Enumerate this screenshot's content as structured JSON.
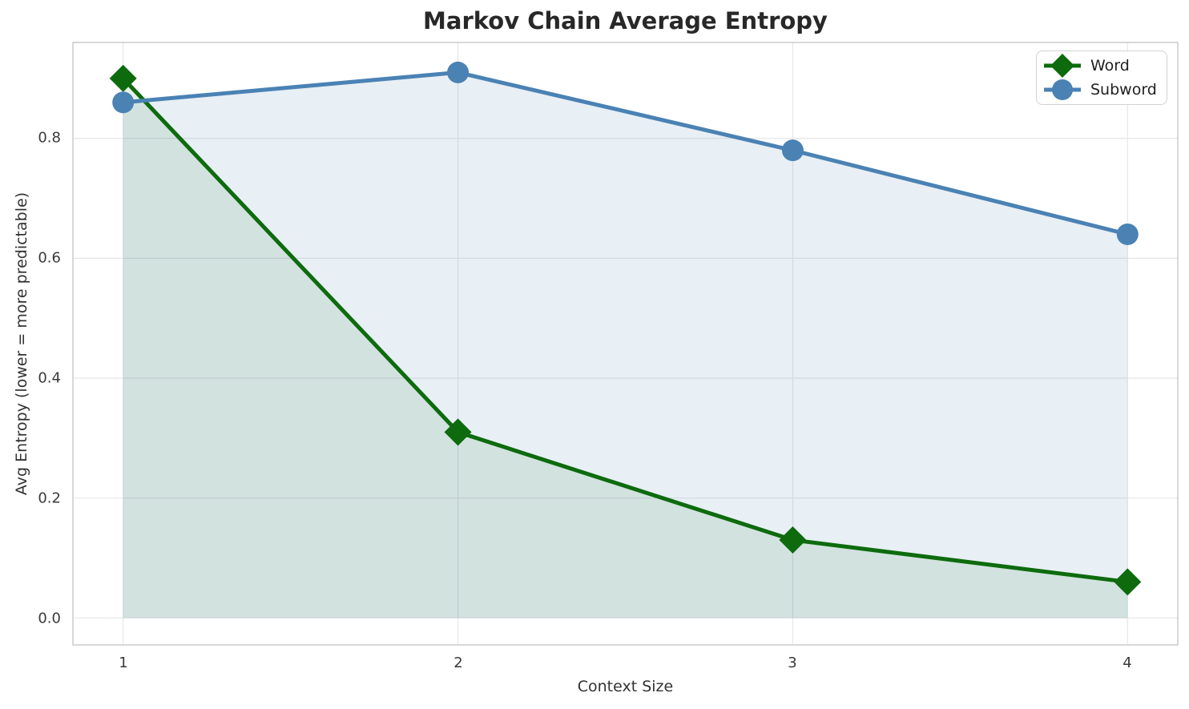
{
  "chart_data": {
    "type": "line",
    "title": "Markov Chain Average Entropy",
    "xlabel": "Context Size",
    "ylabel": "Avg Entropy (lower = more predictable)",
    "x": [
      1,
      2,
      3,
      4
    ],
    "series": [
      {
        "name": "Word",
        "values": [
          0.9,
          0.31,
          0.13,
          0.06
        ],
        "color": "#0d6b0d",
        "marker": "diamond",
        "fill_alpha": 0.1
      },
      {
        "name": "Subword",
        "values": [
          0.86,
          0.91,
          0.78,
          0.64
        ],
        "color": "#4a82b4",
        "marker": "circle",
        "fill_alpha": 0.13
      }
    ],
    "fill_to_zero": true,
    "xlim": [
      0.85,
      4.15
    ],
    "ylim": [
      -0.045,
      0.96
    ],
    "xticks": {
      "values": [
        1,
        2,
        3,
        4
      ],
      "labels": [
        "1",
        "2",
        "3",
        "4"
      ]
    },
    "yticks": {
      "values": [
        0,
        0.2,
        0.4,
        0.6,
        0.8
      ],
      "labels": [
        "0.0",
        "0.2",
        "0.4",
        "0.6",
        "0.8"
      ]
    },
    "grid": true,
    "legend_position": "upper right"
  },
  "style": {
    "grid_color": "#e7e7e7",
    "spine_color": "#cccccc",
    "background": "#ffffff"
  }
}
